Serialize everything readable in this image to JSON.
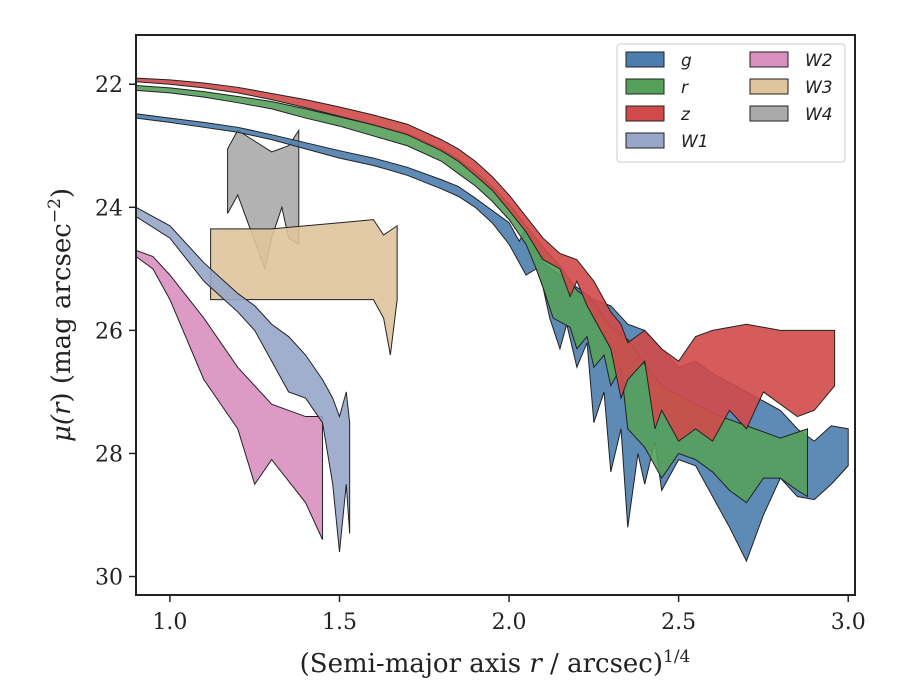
{
  "chart_data": {
    "type": "area",
    "xlabel_main": "(Semi-major axis ",
    "xlabel_var": "r",
    "xlabel_mid": " / arcsec)",
    "xlabel_exp": "1/4",
    "ylabel_pre": "μ(",
    "ylabel_var": "r",
    "ylabel_post": ") (mag arcsec",
    "ylabel_exp": "−2",
    "ylabel_end": ")",
    "xlim": [
      0.9,
      3.02
    ],
    "ylim": [
      30.3,
      21.2
    ],
    "y_inverted": true,
    "x_ticks": [
      1.0,
      1.5,
      2.0,
      2.5,
      3.0
    ],
    "x_tick_labels": [
      "1.0",
      "1.5",
      "2.0",
      "2.5",
      "3.0"
    ],
    "y_ticks": [
      22,
      24,
      26,
      28,
      30
    ],
    "y_tick_labels": [
      "22",
      "24",
      "26",
      "28",
      "30"
    ],
    "grid": false,
    "legend": {
      "position": "top-right",
      "columns": 2
    },
    "series": [
      {
        "name": "g",
        "color": "#4c7dae",
        "upper": [
          [
            0.9,
            22.48
          ],
          [
            1.0,
            22.55
          ],
          [
            1.1,
            22.62
          ],
          [
            1.2,
            22.7
          ],
          [
            1.3,
            22.82
          ],
          [
            1.4,
            22.95
          ],
          [
            1.5,
            23.08
          ],
          [
            1.6,
            23.2
          ],
          [
            1.7,
            23.35
          ],
          [
            1.8,
            23.55
          ],
          [
            1.85,
            23.66
          ],
          [
            1.9,
            23.85
          ],
          [
            1.95,
            24.05
          ],
          [
            2.0,
            24.25
          ],
          [
            2.03,
            24.55
          ],
          [
            2.05,
            24.35
          ],
          [
            2.1,
            24.9
          ],
          [
            2.15,
            25.1
          ],
          [
            2.2,
            25.3
          ],
          [
            2.25,
            25.5
          ],
          [
            2.3,
            25.6
          ],
          [
            2.35,
            25.9
          ],
          [
            2.4,
            26.0
          ],
          [
            2.45,
            26.3
          ],
          [
            2.5,
            26.6
          ],
          [
            2.55,
            26.5
          ],
          [
            2.6,
            26.7
          ],
          [
            2.7,
            27.0
          ],
          [
            2.8,
            27.3
          ],
          [
            2.85,
            27.6
          ],
          [
            2.9,
            27.8
          ],
          [
            2.95,
            27.55
          ],
          [
            3.0,
            27.6
          ]
        ],
        "lower": [
          [
            0.9,
            22.55
          ],
          [
            1.0,
            22.62
          ],
          [
            1.1,
            22.7
          ],
          [
            1.2,
            22.78
          ],
          [
            1.3,
            22.9
          ],
          [
            1.4,
            23.05
          ],
          [
            1.5,
            23.2
          ],
          [
            1.6,
            23.32
          ],
          [
            1.7,
            23.48
          ],
          [
            1.8,
            23.7
          ],
          [
            1.85,
            23.82
          ],
          [
            1.9,
            24.0
          ],
          [
            1.95,
            24.25
          ],
          [
            2.0,
            24.6
          ],
          [
            2.05,
            25.1
          ],
          [
            2.08,
            25.0
          ],
          [
            2.1,
            25.3
          ],
          [
            2.12,
            25.8
          ],
          [
            2.15,
            26.3
          ],
          [
            2.17,
            25.9
          ],
          [
            2.2,
            26.6
          ],
          [
            2.23,
            26.2
          ],
          [
            2.25,
            27.5
          ],
          [
            2.28,
            27.0
          ],
          [
            2.3,
            28.3
          ],
          [
            2.33,
            27.6
          ],
          [
            2.35,
            29.2
          ],
          [
            2.38,
            28.0
          ],
          [
            2.4,
            28.5
          ],
          [
            2.43,
            27.8
          ],
          [
            2.45,
            28.6
          ],
          [
            2.5,
            28.1
          ],
          [
            2.55,
            28.2
          ],
          [
            2.6,
            28.7
          ],
          [
            2.65,
            29.2
          ],
          [
            2.7,
            29.75
          ],
          [
            2.75,
            29.0
          ],
          [
            2.8,
            28.4
          ],
          [
            2.85,
            28.7
          ],
          [
            2.9,
            28.75
          ],
          [
            2.95,
            28.5
          ],
          [
            3.0,
            28.2
          ]
        ]
      },
      {
        "name": "r",
        "color": "#55a05a",
        "upper": [
          [
            0.9,
            22.02
          ],
          [
            1.0,
            22.06
          ],
          [
            1.1,
            22.12
          ],
          [
            1.2,
            22.2
          ],
          [
            1.3,
            22.28
          ],
          [
            1.4,
            22.4
          ],
          [
            1.5,
            22.53
          ],
          [
            1.6,
            22.66
          ],
          [
            1.7,
            22.8
          ],
          [
            1.8,
            23.05
          ],
          [
            1.85,
            23.22
          ],
          [
            1.9,
            23.42
          ],
          [
            1.95,
            23.66
          ],
          [
            2.0,
            23.95
          ],
          [
            2.05,
            24.3
          ],
          [
            2.1,
            24.65
          ],
          [
            2.15,
            24.95
          ],
          [
            2.2,
            25.35
          ],
          [
            2.25,
            25.55
          ],
          [
            2.3,
            25.95
          ],
          [
            2.35,
            26.15
          ],
          [
            2.4,
            26.55
          ],
          [
            2.45,
            26.9
          ],
          [
            2.5,
            27.05
          ],
          [
            2.55,
            27.2
          ],
          [
            2.6,
            27.35
          ],
          [
            2.7,
            27.55
          ],
          [
            2.8,
            27.75
          ],
          [
            2.88,
            27.6
          ]
        ],
        "lower": [
          [
            0.9,
            22.1
          ],
          [
            1.0,
            22.14
          ],
          [
            1.1,
            22.21
          ],
          [
            1.2,
            22.3
          ],
          [
            1.3,
            22.4
          ],
          [
            1.4,
            22.55
          ],
          [
            1.5,
            22.68
          ],
          [
            1.6,
            22.84
          ],
          [
            1.7,
            23.0
          ],
          [
            1.8,
            23.25
          ],
          [
            1.85,
            23.45
          ],
          [
            1.9,
            23.65
          ],
          [
            1.95,
            23.9
          ],
          [
            2.0,
            24.2
          ],
          [
            2.05,
            24.6
          ],
          [
            2.08,
            25.0
          ],
          [
            2.1,
            25.3
          ],
          [
            2.13,
            25.8
          ],
          [
            2.18,
            25.95
          ],
          [
            2.2,
            26.3
          ],
          [
            2.23,
            26.1
          ],
          [
            2.25,
            26.6
          ],
          [
            2.28,
            26.4
          ],
          [
            2.3,
            26.9
          ],
          [
            2.33,
            26.6
          ],
          [
            2.35,
            27.6
          ],
          [
            2.4,
            27.9
          ],
          [
            2.45,
            28.4
          ],
          [
            2.5,
            28.0
          ],
          [
            2.55,
            28.1
          ],
          [
            2.6,
            28.3
          ],
          [
            2.65,
            28.6
          ],
          [
            2.7,
            28.8
          ],
          [
            2.75,
            28.4
          ],
          [
            2.8,
            28.4
          ],
          [
            2.85,
            28.6
          ],
          [
            2.88,
            28.7
          ]
        ]
      },
      {
        "name": "z",
        "color": "#d14a4a",
        "upper": [
          [
            0.9,
            21.9
          ],
          [
            1.0,
            21.93
          ],
          [
            1.1,
            21.98
          ],
          [
            1.2,
            22.05
          ],
          [
            1.3,
            22.15
          ],
          [
            1.4,
            22.25
          ],
          [
            1.5,
            22.37
          ],
          [
            1.6,
            22.5
          ],
          [
            1.7,
            22.65
          ],
          [
            1.8,
            22.9
          ],
          [
            1.85,
            23.05
          ],
          [
            1.9,
            23.25
          ],
          [
            1.95,
            23.5
          ],
          [
            2.0,
            23.8
          ],
          [
            2.05,
            24.15
          ],
          [
            2.1,
            24.5
          ],
          [
            2.15,
            24.75
          ],
          [
            2.2,
            24.85
          ],
          [
            2.25,
            25.2
          ],
          [
            2.3,
            25.7
          ],
          [
            2.33,
            25.9
          ],
          [
            2.35,
            26.2
          ],
          [
            2.4,
            26.0
          ],
          [
            2.45,
            26.3
          ],
          [
            2.5,
            26.5
          ],
          [
            2.55,
            26.1
          ],
          [
            2.6,
            26.0
          ],
          [
            2.7,
            25.9
          ],
          [
            2.8,
            26.0
          ],
          [
            2.9,
            26.0
          ],
          [
            2.96,
            26.0
          ]
        ],
        "lower": [
          [
            0.9,
            21.96
          ],
          [
            1.0,
            22.0
          ],
          [
            1.1,
            22.06
          ],
          [
            1.2,
            22.14
          ],
          [
            1.3,
            22.25
          ],
          [
            1.4,
            22.38
          ],
          [
            1.5,
            22.52
          ],
          [
            1.6,
            22.66
          ],
          [
            1.7,
            22.82
          ],
          [
            1.8,
            23.08
          ],
          [
            1.85,
            23.25
          ],
          [
            1.9,
            23.48
          ],
          [
            1.95,
            23.72
          ],
          [
            2.0,
            24.05
          ],
          [
            2.05,
            24.4
          ],
          [
            2.1,
            24.85
          ],
          [
            2.15,
            25.0
          ],
          [
            2.18,
            25.45
          ],
          [
            2.2,
            25.2
          ],
          [
            2.23,
            25.6
          ],
          [
            2.27,
            26.0
          ],
          [
            2.3,
            26.3
          ],
          [
            2.33,
            27.1
          ],
          [
            2.35,
            26.8
          ],
          [
            2.4,
            26.5
          ],
          [
            2.43,
            27.6
          ],
          [
            2.45,
            27.3
          ],
          [
            2.5,
            27.8
          ],
          [
            2.55,
            27.6
          ],
          [
            2.6,
            27.8
          ],
          [
            2.65,
            27.3
          ],
          [
            2.7,
            27.6
          ],
          [
            2.75,
            27.0
          ],
          [
            2.8,
            27.2
          ],
          [
            2.85,
            27.4
          ],
          [
            2.9,
            27.3
          ],
          [
            2.96,
            26.9
          ]
        ]
      },
      {
        "name": "W1",
        "color": "#97a6c9",
        "upper": [
          [
            0.9,
            24.0
          ],
          [
            1.0,
            24.3
          ],
          [
            1.1,
            24.9
          ],
          [
            1.2,
            25.4
          ],
          [
            1.25,
            25.6
          ],
          [
            1.3,
            25.9
          ],
          [
            1.35,
            26.1
          ],
          [
            1.4,
            26.4
          ],
          [
            1.45,
            26.8
          ],
          [
            1.48,
            27.1
          ],
          [
            1.5,
            27.4
          ],
          [
            1.52,
            27.0
          ],
          [
            1.53,
            27.5
          ]
        ],
        "lower": [
          [
            0.9,
            24.15
          ],
          [
            1.0,
            24.5
          ],
          [
            1.1,
            25.2
          ],
          [
            1.2,
            25.7
          ],
          [
            1.25,
            26.0
          ],
          [
            1.3,
            26.5
          ],
          [
            1.35,
            27.0
          ],
          [
            1.4,
            27.1
          ],
          [
            1.45,
            27.5
          ],
          [
            1.48,
            28.5
          ],
          [
            1.5,
            29.6
          ],
          [
            1.52,
            28.5
          ],
          [
            1.53,
            29.3
          ]
        ]
      },
      {
        "name": "W2",
        "color": "#d98fbf",
        "upper": [
          [
            0.9,
            24.7
          ],
          [
            0.95,
            24.8
          ],
          [
            1.0,
            25.1
          ],
          [
            1.1,
            25.8
          ],
          [
            1.2,
            26.6
          ],
          [
            1.3,
            27.2
          ],
          [
            1.4,
            27.4
          ],
          [
            1.45,
            27.4
          ]
        ],
        "lower": [
          [
            0.9,
            24.8
          ],
          [
            0.95,
            25.0
          ],
          [
            1.0,
            25.5
          ],
          [
            1.1,
            26.8
          ],
          [
            1.2,
            27.6
          ],
          [
            1.25,
            28.5
          ],
          [
            1.3,
            28.1
          ],
          [
            1.4,
            28.8
          ],
          [
            1.45,
            29.4
          ]
        ]
      },
      {
        "name": "W3",
        "color": "#e0c49c",
        "upper": [
          [
            1.12,
            24.35
          ],
          [
            1.3,
            24.35
          ],
          [
            1.5,
            24.25
          ],
          [
            1.6,
            24.2
          ],
          [
            1.63,
            24.45
          ],
          [
            1.67,
            24.3
          ]
        ],
        "lower": [
          [
            1.12,
            25.5
          ],
          [
            1.3,
            25.5
          ],
          [
            1.5,
            25.5
          ],
          [
            1.6,
            25.5
          ],
          [
            1.63,
            25.8
          ],
          [
            1.65,
            26.4
          ],
          [
            1.67,
            25.5
          ]
        ]
      },
      {
        "name": "W4",
        "color": "#aaaaaa",
        "upper": [
          [
            1.17,
            23.05
          ],
          [
            1.2,
            22.75
          ],
          [
            1.3,
            23.1
          ],
          [
            1.35,
            23.0
          ],
          [
            1.38,
            22.75
          ]
        ],
        "lower": [
          [
            1.17,
            24.1
          ],
          [
            1.2,
            23.8
          ],
          [
            1.25,
            24.55
          ],
          [
            1.28,
            25.0
          ],
          [
            1.3,
            24.5
          ],
          [
            1.33,
            24.0
          ],
          [
            1.35,
            24.5
          ],
          [
            1.38,
            24.6
          ]
        ]
      }
    ]
  }
}
